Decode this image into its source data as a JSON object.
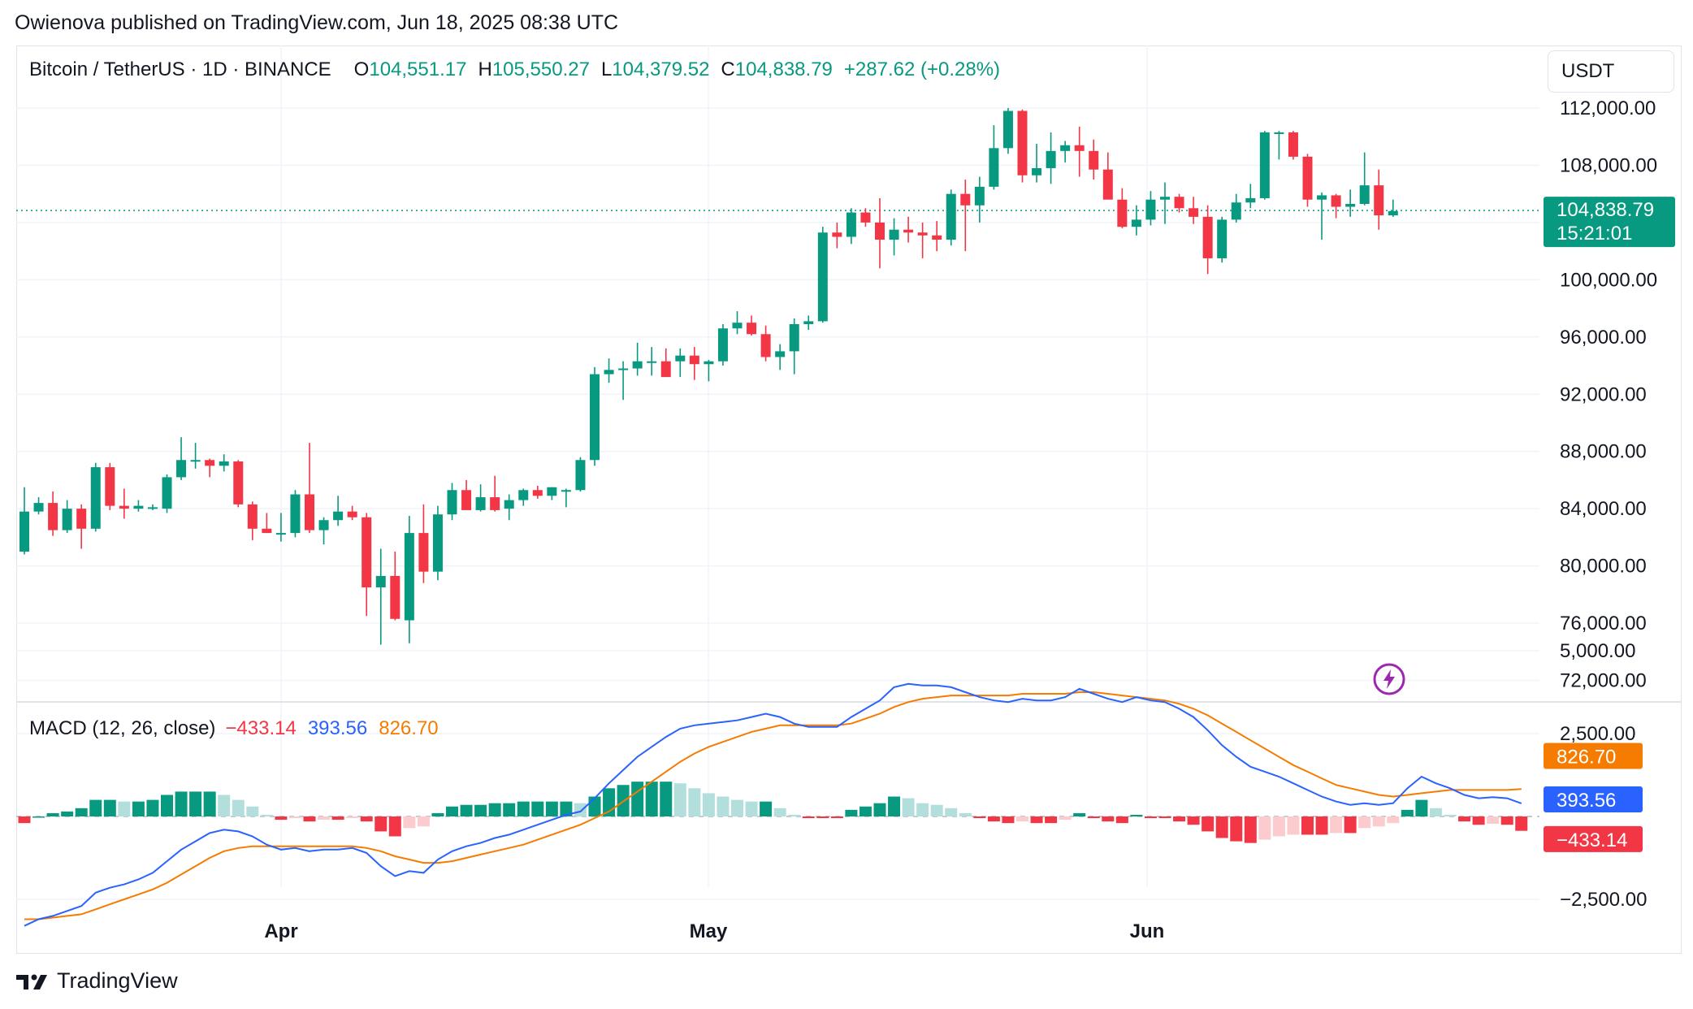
{
  "header": {
    "publish_line": "Owienova published on TradingView.com, Jun 18, 2025 08:38 UTC"
  },
  "instrument": {
    "symbol_line": "Bitcoin / TetherUS · 1D · BINANCE",
    "open_label": "O",
    "open": "104,551.17",
    "high_label": "H",
    "high": "105,550.27",
    "low_label": "L",
    "low": "104,379.52",
    "close_label": "C",
    "close": "104,838.79",
    "change": "+287.62 (+0.28%)"
  },
  "price_axis": {
    "unit": "USDT",
    "last_price": "104,838.79",
    "countdown": "15:21:01"
  },
  "macd_legend": {
    "label": "MACD (12, 26, close)",
    "histogram": "−433.14",
    "macd": "393.56",
    "signal": "826.70"
  },
  "footer": {
    "brand": "TradingView"
  },
  "colors": {
    "up": "#089981",
    "down": "#f23645",
    "macd": "#2962ff",
    "signal": "#f57c00",
    "hist_up_light": "#b2dfdb",
    "hist_down_light": "#fccbcd"
  },
  "chart_data": [
    {
      "type": "candlestick",
      "title": "Bitcoin / TetherUS · 1D · BINANCE",
      "ylabel": "USDT",
      "ylim": [
        70000,
        114000
      ],
      "y_ticks": [
        "112,000.00",
        "108,000.00",
        "104,838.79",
        "100,000.00",
        "96,000.00",
        "92,000.00",
        "88,000.00",
        "84,000.00",
        "80,000.00",
        "76,000.00",
        "72,000.00"
      ],
      "x_ticks": [
        "Apr",
        "May",
        "Jun"
      ],
      "grid": true,
      "last_price": 104838.79,
      "candles": [
        {
          "o": 81000,
          "h": 85500,
          "l": 80800,
          "c": 83800
        },
        {
          "o": 83800,
          "h": 84800,
          "l": 83600,
          "c": 84400
        },
        {
          "o": 84400,
          "h": 85200,
          "l": 82100,
          "c": 82500
        },
        {
          "o": 82500,
          "h": 84600,
          "l": 82300,
          "c": 84000
        },
        {
          "o": 84000,
          "h": 84300,
          "l": 81200,
          "c": 82600
        },
        {
          "o": 82600,
          "h": 87200,
          "l": 82400,
          "c": 86900
        },
        {
          "o": 86900,
          "h": 87200,
          "l": 83900,
          "c": 84200
        },
        {
          "o": 84200,
          "h": 85400,
          "l": 83300,
          "c": 84000
        },
        {
          "o": 84000,
          "h": 84600,
          "l": 83800,
          "c": 84200
        },
        {
          "o": 84000,
          "h": 84300,
          "l": 83900,
          "c": 84100
        },
        {
          "o": 84000,
          "h": 86400,
          "l": 83700,
          "c": 86200
        },
        {
          "o": 86200,
          "h": 89000,
          "l": 86000,
          "c": 87400
        },
        {
          "o": 87400,
          "h": 88600,
          "l": 86800,
          "c": 87400
        },
        {
          "o": 87400,
          "h": 87500,
          "l": 86200,
          "c": 87000
        },
        {
          "o": 87000,
          "h": 87800,
          "l": 86600,
          "c": 87300
        },
        {
          "o": 87300,
          "h": 87400,
          "l": 84100,
          "c": 84300
        },
        {
          "o": 84300,
          "h": 84500,
          "l": 81800,
          "c": 82600
        },
        {
          "o": 82600,
          "h": 83700,
          "l": 82300,
          "c": 82300
        },
        {
          "o": 82300,
          "h": 83700,
          "l": 81700,
          "c": 82300
        },
        {
          "o": 82300,
          "h": 85300,
          "l": 82000,
          "c": 85000
        },
        {
          "o": 85000,
          "h": 88600,
          "l": 82300,
          "c": 82500
        },
        {
          "o": 82500,
          "h": 83400,
          "l": 81500,
          "c": 83200
        },
        {
          "o": 83200,
          "h": 84900,
          "l": 82800,
          "c": 83800
        },
        {
          "o": 83800,
          "h": 84200,
          "l": 83200,
          "c": 83400
        },
        {
          "o": 83400,
          "h": 83700,
          "l": 76500,
          "c": 78500
        },
        {
          "o": 78500,
          "h": 81200,
          "l": 74500,
          "c": 79300
        },
        {
          "o": 79300,
          "h": 81000,
          "l": 76200,
          "c": 76300
        },
        {
          "o": 76200,
          "h": 83500,
          "l": 74600,
          "c": 82300
        },
        {
          "o": 82300,
          "h": 84300,
          "l": 78800,
          "c": 79600
        },
        {
          "o": 79600,
          "h": 84200,
          "l": 79000,
          "c": 83600
        },
        {
          "o": 83600,
          "h": 85800,
          "l": 83200,
          "c": 85300
        },
        {
          "o": 85300,
          "h": 86000,
          "l": 84300,
          "c": 83900
        },
        {
          "o": 83900,
          "h": 85700,
          "l": 83800,
          "c": 84800
        },
        {
          "o": 84800,
          "h": 86300,
          "l": 83800,
          "c": 83900
        },
        {
          "o": 84000,
          "h": 85000,
          "l": 83200,
          "c": 84600
        },
        {
          "o": 84600,
          "h": 85400,
          "l": 84200,
          "c": 85300
        },
        {
          "o": 85300,
          "h": 85600,
          "l": 84700,
          "c": 84900
        },
        {
          "o": 84900,
          "h": 85500,
          "l": 84600,
          "c": 85500
        },
        {
          "o": 85200,
          "h": 85400,
          "l": 84100,
          "c": 85300
        },
        {
          "o": 85300,
          "h": 87600,
          "l": 85200,
          "c": 87400
        },
        {
          "o": 87400,
          "h": 93900,
          "l": 87000,
          "c": 93400
        },
        {
          "o": 93400,
          "h": 94500,
          "l": 92800,
          "c": 93700
        },
        {
          "o": 93700,
          "h": 94300,
          "l": 91600,
          "c": 93800
        },
        {
          "o": 93800,
          "h": 95600,
          "l": 93300,
          "c": 94300
        },
        {
          "o": 94300,
          "h": 95300,
          "l": 93300,
          "c": 94300
        },
        {
          "o": 94300,
          "h": 95200,
          "l": 93300,
          "c": 93200
        },
        {
          "o": 94300,
          "h": 95200,
          "l": 93200,
          "c": 94700
        },
        {
          "o": 94700,
          "h": 95300,
          "l": 93000,
          "c": 94100
        },
        {
          "o": 94100,
          "h": 94400,
          "l": 92900,
          "c": 94300
        },
        {
          "o": 94300,
          "h": 96900,
          "l": 94000,
          "c": 96600
        },
        {
          "o": 96600,
          "h": 97800,
          "l": 96200,
          "c": 97000
        },
        {
          "o": 97000,
          "h": 97500,
          "l": 96100,
          "c": 96200
        },
        {
          "o": 96200,
          "h": 96800,
          "l": 94300,
          "c": 94600
        },
        {
          "o": 94600,
          "h": 95500,
          "l": 93700,
          "c": 95000
        },
        {
          "o": 95000,
          "h": 97300,
          "l": 93400,
          "c": 96900
        },
        {
          "o": 96900,
          "h": 97500,
          "l": 96500,
          "c": 97100
        },
        {
          "o": 97100,
          "h": 103700,
          "l": 97000,
          "c": 103300
        },
        {
          "o": 103300,
          "h": 104000,
          "l": 102200,
          "c": 103000
        },
        {
          "o": 103000,
          "h": 105000,
          "l": 102500,
          "c": 104700
        },
        {
          "o": 104700,
          "h": 105000,
          "l": 103700,
          "c": 104000
        },
        {
          "o": 104000,
          "h": 105700,
          "l": 100800,
          "c": 102800
        },
        {
          "o": 102800,
          "h": 104300,
          "l": 101700,
          "c": 103500
        },
        {
          "o": 103500,
          "h": 104400,
          "l": 102600,
          "c": 103300
        },
        {
          "o": 103300,
          "h": 104000,
          "l": 101500,
          "c": 103100
        },
        {
          "o": 103100,
          "h": 104100,
          "l": 102000,
          "c": 102800
        },
        {
          "o": 102800,
          "h": 106300,
          "l": 102400,
          "c": 106000
        },
        {
          "o": 106000,
          "h": 107000,
          "l": 102000,
          "c": 105200
        },
        {
          "o": 105200,
          "h": 107200,
          "l": 104000,
          "c": 106500
        },
        {
          "o": 106500,
          "h": 110800,
          "l": 106300,
          "c": 109200
        },
        {
          "o": 109200,
          "h": 112000,
          "l": 108800,
          "c": 111800
        },
        {
          "o": 111800,
          "h": 111900,
          "l": 106800,
          "c": 107300
        },
        {
          "o": 107300,
          "h": 109500,
          "l": 106800,
          "c": 107800
        },
        {
          "o": 107800,
          "h": 110300,
          "l": 106700,
          "c": 109000
        },
        {
          "o": 109000,
          "h": 109700,
          "l": 108200,
          "c": 109400
        },
        {
          "o": 109400,
          "h": 110700,
          "l": 107200,
          "c": 109000
        },
        {
          "o": 109000,
          "h": 109800,
          "l": 107000,
          "c": 107700
        },
        {
          "o": 107700,
          "h": 108900,
          "l": 105800,
          "c": 105600
        },
        {
          "o": 105600,
          "h": 106400,
          "l": 103600,
          "c": 103700
        },
        {
          "o": 103700,
          "h": 105200,
          "l": 103100,
          "c": 104200
        },
        {
          "o": 104200,
          "h": 106200,
          "l": 103800,
          "c": 105600
        },
        {
          "o": 105600,
          "h": 106800,
          "l": 103900,
          "c": 105800
        },
        {
          "o": 105800,
          "h": 106000,
          "l": 104700,
          "c": 105000
        },
        {
          "o": 105000,
          "h": 105800,
          "l": 103900,
          "c": 104400
        },
        {
          "o": 104400,
          "h": 105200,
          "l": 100400,
          "c": 101500
        },
        {
          "o": 101500,
          "h": 104400,
          "l": 101200,
          "c": 104200
        },
        {
          "o": 104200,
          "h": 106000,
          "l": 104000,
          "c": 105400
        },
        {
          "o": 105400,
          "h": 106700,
          "l": 105000,
          "c": 105700
        },
        {
          "o": 105700,
          "h": 110400,
          "l": 105600,
          "c": 110300
        },
        {
          "o": 110300,
          "h": 110400,
          "l": 108400,
          "c": 110300
        },
        {
          "o": 110300,
          "h": 110400,
          "l": 108400,
          "c": 108600
        },
        {
          "o": 108600,
          "h": 108800,
          "l": 105100,
          "c": 105600
        },
        {
          "o": 105600,
          "h": 106100,
          "l": 102800,
          "c": 105900
        },
        {
          "o": 105900,
          "h": 106000,
          "l": 104300,
          "c": 105100
        },
        {
          "o": 105100,
          "h": 106300,
          "l": 104400,
          "c": 105300
        },
        {
          "o": 105300,
          "h": 108900,
          "l": 105200,
          "c": 106600
        },
        {
          "o": 106600,
          "h": 107700,
          "l": 103500,
          "c": 104500
        },
        {
          "o": 104500,
          "h": 105600,
          "l": 104400,
          "c": 104800
        }
      ]
    },
    {
      "type": "macd",
      "title": "MACD (12, 26, close)",
      "ylim": [
        -3700,
        5000
      ],
      "y_ticks": [
        "5,000.00",
        "2,500.00",
        "−2,500.00"
      ],
      "last_values": {
        "macd": 393.56,
        "signal": 826.7,
        "histogram": -433.14
      },
      "macd": [
        -3300,
        -3100,
        -3000,
        -2850,
        -2700,
        -2300,
        -2150,
        -2050,
        -1900,
        -1700,
        -1350,
        -1000,
        -750,
        -500,
        -400,
        -450,
        -600,
        -850,
        -1000,
        -950,
        -1050,
        -1000,
        -1000,
        -950,
        -1100,
        -1500,
        -1800,
        -1650,
        -1700,
        -1300,
        -1050,
        -900,
        -800,
        -650,
        -550,
        -400,
        -250,
        -100,
        50,
        150,
        550,
        1000,
        1400,
        1800,
        2100,
        2400,
        2650,
        2750,
        2800,
        2850,
        2900,
        3000,
        3100,
        3000,
        2800,
        2700,
        2700,
        2700,
        3000,
        3250,
        3500,
        3900,
        4000,
        3950,
        3950,
        3900,
        3750,
        3600,
        3500,
        3450,
        3550,
        3500,
        3500,
        3600,
        3850,
        3700,
        3550,
        3450,
        3600,
        3500,
        3450,
        3250,
        3000,
        2600,
        2150,
        1800,
        1500,
        1350,
        1200,
        1000,
        800,
        600,
        450,
        350,
        400,
        350,
        400,
        850,
        1200,
        1000,
        850,
        650,
        550,
        580,
        550,
        393.56
      ],
      "signal": [
        -3100,
        -3100,
        -3050,
        -3000,
        -2950,
        -2800,
        -2650,
        -2500,
        -2350,
        -2200,
        -2000,
        -1750,
        -1500,
        -1250,
        -1050,
        -950,
        -900,
        -900,
        -900,
        -900,
        -900,
        -900,
        -900,
        -900,
        -950,
        -1050,
        -1200,
        -1300,
        -1400,
        -1400,
        -1350,
        -1250,
        -1150,
        -1050,
        -950,
        -850,
        -700,
        -550,
        -400,
        -250,
        -50,
        150,
        450,
        750,
        1050,
        1350,
        1650,
        1900,
        2100,
        2250,
        2400,
        2550,
        2650,
        2750,
        2750,
        2750,
        2750,
        2750,
        2800,
        2950,
        3100,
        3300,
        3450,
        3550,
        3600,
        3650,
        3650,
        3650,
        3650,
        3650,
        3700,
        3700,
        3700,
        3700,
        3750,
        3750,
        3700,
        3650,
        3600,
        3550,
        3500,
        3400,
        3250,
        3050,
        2800,
        2550,
        2300,
        2050,
        1800,
        1550,
        1350,
        1150,
        950,
        850,
        750,
        650,
        600,
        650,
        700,
        750,
        800,
        800,
        800,
        800,
        800,
        826.7
      ],
      "histogram": [
        -200,
        0,
        100,
        150,
        250,
        500,
        500,
        450,
        450,
        500,
        650,
        750,
        750,
        750,
        650,
        500,
        300,
        50,
        -100,
        -50,
        -150,
        -100,
        -100,
        -50,
        -150,
        -450,
        -600,
        -350,
        -300,
        100,
        300,
        350,
        350,
        400,
        400,
        450,
        450,
        450,
        450,
        400,
        600,
        850,
        950,
        1050,
        1050,
        1050,
        1000,
        850,
        700,
        600,
        500,
        450,
        450,
        250,
        50,
        -50,
        -50,
        -50,
        200,
        300,
        400,
        600,
        550,
        400,
        350,
        250,
        100,
        -50,
        -150,
        -200,
        -150,
        -200,
        -200,
        -100,
        100,
        -50,
        -150,
        -200,
        50,
        -50,
        -50,
        -150,
        -250,
        -450,
        -650,
        -750,
        -800,
        -700,
        -600,
        -550,
        -550,
        -550,
        -500,
        -500,
        -350,
        -300,
        -200,
        200,
        500,
        250,
        50,
        -150,
        -250,
        -220,
        -250,
        -433.14
      ]
    }
  ]
}
